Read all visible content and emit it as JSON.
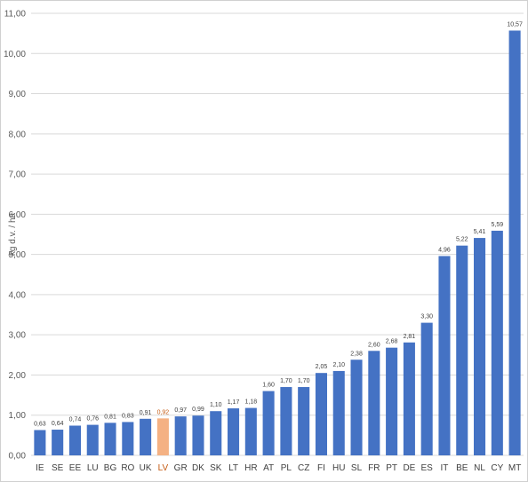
{
  "chart_data": {
    "type": "bar",
    "title": "",
    "xlabel": "",
    "ylabel": "kg d.v. / ha",
    "ylim": [
      0,
      11
    ],
    "y_ticks": [
      "0,00",
      "1,00",
      "2,00",
      "3,00",
      "4,00",
      "5,00",
      "6,00",
      "7,00",
      "8,00",
      "9,00",
      "10,00",
      "11,00"
    ],
    "grid": true,
    "legend": "none",
    "categories": [
      "IE",
      "SE",
      "EE",
      "LU",
      "BG",
      "RO",
      "UK",
      "LV",
      "GR",
      "DK",
      "SK",
      "LT",
      "HR",
      "AT",
      "PL",
      "CZ",
      "FI",
      "HU",
      "SL",
      "FR",
      "PT",
      "DE",
      "ES",
      "IT",
      "BE",
      "NL",
      "CY",
      "MT"
    ],
    "values": [
      0.63,
      0.64,
      0.74,
      0.76,
      0.81,
      0.83,
      0.91,
      0.92,
      0.97,
      0.99,
      1.1,
      1.17,
      1.18,
      1.6,
      1.7,
      1.7,
      2.05,
      2.1,
      2.38,
      2.6,
      2.68,
      2.81,
      3.3,
      4.96,
      5.22,
      5.41,
      5.59,
      10.57
    ],
    "value_labels": [
      "0,63",
      "0,64",
      "0,74",
      "0,76",
      "0,81",
      "0,83",
      "0,91",
      "0,92",
      "0,97",
      "0,99",
      "1,10",
      "1,17",
      "1,18",
      "1,60",
      "1,70",
      "1,70",
      "2,05",
      "2,10",
      "2,38",
      "2,60",
      "2,68",
      "2,81",
      "3,30",
      "4,96",
      "5,22",
      "5,41",
      "5,59",
      "10,57"
    ],
    "highlight_category": "LV",
    "colors": {
      "bar": "#4472C4",
      "highlight": "#F4B183",
      "highlight_label": "#C55A11",
      "grid": "#D9D9D9"
    }
  }
}
